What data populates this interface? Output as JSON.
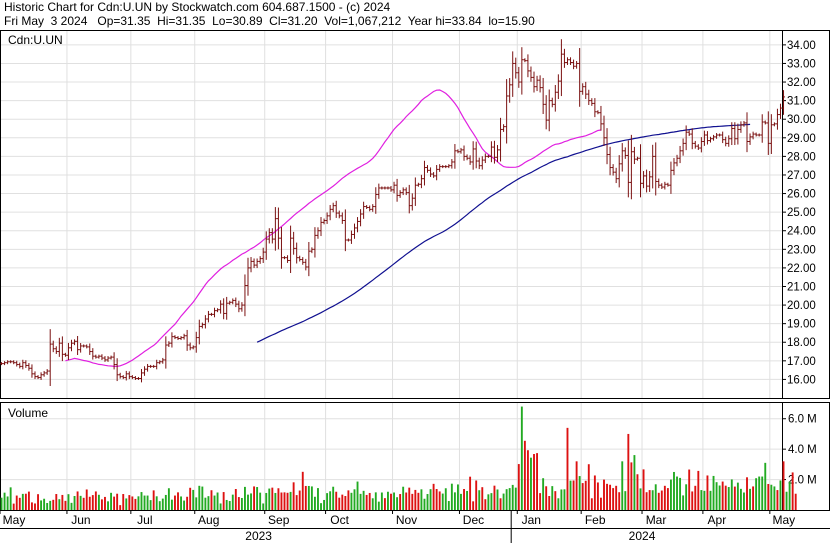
{
  "header": {
    "line1": "Historic Chart for Cdn:U.UN by Stockwatch.com 604.687.1500 - (c) 2024",
    "line2": "Fri May  3 2024   Op=31.35  Hi=31.35  Lo=30.89  Cl=31.20  Vol=1,067,212  Year hi=33.84  lo=15.90"
  },
  "colors": {
    "price_bar": "#7a1010",
    "ma_short": "#e020e0",
    "ma_long": "#101090",
    "vol_up": "#22aa22",
    "vol_down": "#dd1111",
    "grid": "#e0e0e0"
  },
  "chart_data": [
    {
      "type": "ohlc",
      "symbol_label": "Cdn:U.UN",
      "ylim": [
        15.0,
        34.8
      ],
      "y_ticks": [
        "34.00",
        "33.00",
        "32.00",
        "31.00",
        "30.00",
        "29.00",
        "28.00",
        "27.00",
        "26.00",
        "25.00",
        "24.00",
        "23.00",
        "22.00",
        "21.00",
        "20.00",
        "19.00",
        "18.00",
        "17.00",
        "16.00"
      ],
      "month_labels": [
        "May",
        "Jun",
        "Jul",
        "Aug",
        "Sep",
        "Oct",
        "Nov",
        "Dec",
        "Jan",
        "Feb",
        "Mar",
        "Apr",
        "May"
      ],
      "month_start_index": [
        0,
        22,
        43,
        64,
        87,
        107,
        129,
        151,
        170,
        191,
        211,
        231,
        253
      ],
      "year_labels": [
        "2023",
        "2024"
      ],
      "year_label_index": [
        85,
        211
      ],
      "year_boundary_index": 168,
      "total_periods": 257,
      "close": [
        16.85,
        16.9,
        16.95,
        16.95,
        16.9,
        16.8,
        16.7,
        16.9,
        16.75,
        16.6,
        16.3,
        16.15,
        16.1,
        16.25,
        16.35,
        16.45,
        17.9,
        17.65,
        17.5,
        17.95,
        17.35,
        17.3,
        17.7,
        17.95,
        18.05,
        17.6,
        17.8,
        17.8,
        17.75,
        17.5,
        17.25,
        17.2,
        17.25,
        17.15,
        17.05,
        17.15,
        17.2,
        16.8,
        16.25,
        16.15,
        16.1,
        16.3,
        16.15,
        16.1,
        16.05,
        16.05,
        16.35,
        16.55,
        16.7,
        16.7,
        16.7,
        16.9,
        16.95,
        17.05,
        17.85,
        17.95,
        18.3,
        18.25,
        18.2,
        18.25,
        18.35,
        17.85,
        17.7,
        17.75,
        18.25,
        18.85,
        18.95,
        19.25,
        19.5,
        19.5,
        19.7,
        19.75,
        20.05,
        19.55,
        20.1,
        20.15,
        20.25,
        20.05,
        19.8,
        20.0,
        21.05,
        22.0,
        22.35,
        22.15,
        22.35,
        22.5,
        22.85,
        23.55,
        23.9,
        23.55,
        24.65,
        23.6,
        22.55,
        22.55,
        22.4,
        23.6,
        23.05,
        22.55,
        22.45,
        22.3,
        22.05,
        22.9,
        23.0,
        23.75,
        24.0,
        24.45,
        24.55,
        24.8,
        25.15,
        25.35,
        24.95,
        24.8,
        24.55,
        23.5,
        23.5,
        23.8,
        24.15,
        24.5,
        24.9,
        25.3,
        25.25,
        25.15,
        25.3,
        25.95,
        26.3,
        26.3,
        26.3,
        26.3,
        26.2,
        26.45,
        25.9,
        26.05,
        26.2,
        26.05,
        25.35,
        25.75,
        26.45,
        26.5,
        26.8,
        27.4,
        27.25,
        27.05,
        26.95,
        27.3,
        27.45,
        27.45,
        27.45,
        27.5,
        27.7,
        28.3,
        28.25,
        28.35,
        28.0,
        27.9,
        27.7,
        28.4,
        27.75,
        27.5,
        27.8,
        28.0,
        28.0,
        28.5,
        27.95,
        28.35,
        29.45,
        29.6,
        31.25,
        31.85,
        33.0,
        32.5,
        32.0,
        33.2,
        33.15,
        32.6,
        32.25,
        31.75,
        32.1,
        31.7,
        30.8,
        29.95,
        31.0,
        30.8,
        31.45,
        32.05,
        33.5,
        33.05,
        33.2,
        33.05,
        32.85,
        33.0,
        31.5,
        31.75,
        31.35,
        31.0,
        30.85,
        30.4,
        30.35,
        29.75,
        29.0,
        28.1,
        27.4,
        27.15,
        26.8,
        27.6,
        28.3,
        28.05,
        26.6,
        28.25,
        27.85,
        27.9,
        26.55,
        26.95,
        26.4,
        26.9,
        28.0,
        26.65,
        26.45,
        26.35,
        26.5,
        26.45,
        27.25,
        27.65,
        27.9,
        28.3,
        28.7,
        29.3,
        29.2,
        28.7,
        28.55,
        28.45,
        28.8,
        29.15,
        28.85,
        28.95,
        29.05,
        29.15,
        29.15,
        28.9,
        28.7,
        28.95,
        29.5,
        28.95,
        29.45,
        29.7,
        29.8,
        28.8,
        29.05,
        29.2,
        29.15,
        29.15,
        29.85,
        29.8,
        28.7,
        29.7,
        29.75,
        30.25,
        30.6,
        31.2
      ],
      "ma_short_start_index": 21,
      "ma_short": [
        17.0,
        17.05,
        17.08,
        17.13,
        17.1,
        17.06,
        17.02,
        16.99,
        16.95,
        16.89,
        16.85,
        16.81,
        16.79,
        16.76,
        16.73,
        16.72,
        16.7,
        16.7,
        16.73,
        16.79,
        16.86,
        16.95,
        17.04,
        17.15,
        17.26,
        17.38,
        17.5,
        17.61,
        17.72,
        17.83,
        17.97,
        18.15,
        18.32,
        18.48,
        18.65,
        18.81,
        18.97,
        19.18,
        19.4,
        19.59,
        19.78,
        19.97,
        20.16,
        20.39,
        20.63,
        20.86,
        21.1,
        21.3,
        21.46,
        21.63,
        21.79,
        21.94,
        22.07,
        22.17,
        22.28,
        22.41,
        22.51,
        22.63,
        22.74,
        22.82,
        22.92,
        23.03,
        23.12,
        23.23,
        23.35,
        23.49,
        23.62,
        23.73,
        23.83,
        23.96,
        24.1,
        24.23,
        24.37,
        24.51,
        24.66,
        24.81,
        24.95,
        25.07,
        25.2,
        25.33,
        25.47,
        25.59,
        25.71,
        25.83,
        25.94,
        26.05,
        26.16,
        26.28,
        26.4,
        26.53,
        26.68,
        26.82,
        26.94,
        27.06,
        27.16,
        27.26,
        27.36,
        27.45,
        27.54,
        27.63,
        27.75,
        27.89,
        28.08,
        28.3,
        28.54,
        28.78,
        29.0,
        29.23,
        29.45,
        29.63,
        29.78,
        29.95,
        30.14,
        30.3,
        30.45,
        30.62,
        30.8,
        31.0,
        31.14,
        31.25,
        31.37,
        31.49,
        31.56,
        31.57,
        31.49,
        31.39,
        31.24,
        31.05,
        30.85,
        30.62,
        30.32,
        30.03,
        29.76,
        29.49,
        29.24,
        28.99,
        28.69,
        28.41,
        28.23,
        28.1,
        27.99,
        27.86,
        27.71,
        27.57,
        27.45,
        27.42,
        27.41,
        27.41,
        27.42,
        27.46,
        27.55,
        27.67,
        27.76,
        27.84,
        27.93,
        28.04,
        28.15,
        28.27,
        28.37,
        28.47,
        28.58,
        28.65,
        28.67,
        28.72,
        28.79,
        28.84,
        28.91,
        28.95,
        29.0,
        29.04,
        29.07,
        29.11,
        29.17,
        29.23,
        29.32,
        29.39,
        29.42
      ],
      "ma_long_start_index": 84,
      "ma_long": [
        18.0,
        18.08,
        18.16,
        18.24,
        18.32,
        18.39,
        18.46,
        18.54,
        18.62,
        18.69,
        18.76,
        18.83,
        18.9,
        18.97,
        19.04,
        19.11,
        19.19,
        19.27,
        19.35,
        19.43,
        19.51,
        19.59,
        19.68,
        19.77,
        19.86,
        19.94,
        20.03,
        20.13,
        20.22,
        20.32,
        20.42,
        20.52,
        20.63,
        20.74,
        20.86,
        20.98,
        21.1,
        21.22,
        21.34,
        21.47,
        21.59,
        21.72,
        21.84,
        21.97,
        22.09,
        22.22,
        22.35,
        22.48,
        22.6,
        22.73,
        22.85,
        22.97,
        23.08,
        23.2,
        23.31,
        23.42,
        23.51,
        23.6,
        23.69,
        23.77,
        23.85,
        23.93,
        24.03,
        24.13,
        24.24,
        24.35,
        24.47,
        24.6,
        24.73,
        24.86,
        25.0,
        25.13,
        25.26,
        25.39,
        25.51,
        25.64,
        25.76,
        25.87,
        25.97,
        26.07,
        26.17,
        26.29,
        26.4,
        26.5,
        26.6,
        26.7,
        26.8,
        26.89,
        26.97,
        27.05,
        27.13,
        27.22,
        27.31,
        27.4,
        27.48,
        27.56,
        27.65,
        27.72,
        27.79,
        27.84,
        27.89,
        27.94,
        27.98,
        28.04,
        28.1,
        28.15,
        28.2,
        28.25,
        28.31,
        28.36,
        28.41,
        28.46,
        28.51,
        28.56,
        28.61,
        28.65,
        28.69,
        28.73,
        28.77,
        28.8,
        28.84,
        28.87,
        28.9,
        28.93,
        28.96,
        28.99,
        29.02,
        29.05,
        29.08,
        29.11,
        29.14,
        29.16,
        29.18,
        29.21,
        29.23,
        29.26,
        29.29,
        29.31,
        29.34,
        29.37,
        29.39,
        29.42,
        29.44,
        29.47,
        29.49,
        29.51,
        29.53,
        29.55,
        29.57,
        29.58,
        29.6,
        29.61,
        29.62,
        29.63,
        29.64,
        29.65,
        29.66,
        29.67,
        29.68,
        29.69,
        29.7,
        29.71,
        29.72
      ]
    },
    {
      "type": "bar",
      "label": "Volume",
      "ylim": [
        0,
        7.1
      ],
      "y_ticks": [
        "6.0 M",
        "4.0 M",
        "2.0 M"
      ],
      "volume_millions": [
        0.81,
        1.14,
        0.89,
        1.49,
        0.42,
        0.95,
        0.8,
        1.06,
        1.07,
        1.21,
        0.5,
        0.43,
        1.04,
        0.63,
        0.74,
        0.46,
        0.6,
        0.67,
        1.05,
        0.71,
        0.99,
        0.6,
        1.04,
        0.47,
        0.92,
        1.22,
        0.93,
        0.8,
        1.35,
        0.87,
        0.98,
        1.22,
        1.0,
        0.7,
        0.86,
        0.57,
        1.13,
        0.88,
        1.07,
        0.32,
        1.05,
        0.76,
        0.98,
        0.89,
        0.73,
        0.9,
        1.18,
        0.95,
        0.95,
        0.65,
        1.29,
        0.9,
        0.58,
        0.75,
        0.99,
        1.43,
        0.68,
        0.95,
        1.16,
        0.89,
        0.62,
        0.87,
        1.46,
        1.32,
        0.83,
        1.59,
        1.54,
        0.81,
        0.91,
        1.3,
        0.95,
        1.15,
        0.43,
        1.18,
        0.66,
        0.59,
        1.01,
        1.38,
        0.85,
        0.79,
        1.52,
        1.01,
        1.09,
        1.55,
        1.51,
        1.14,
        0.43,
        1.12,
        1.41,
        1.47,
        1.12,
        1.43,
        1.15,
        1.16,
        1.13,
        1.19,
        1.82,
        0.98,
        1.28,
        2.51,
        1.58,
        1.58,
        1.55,
        0.87,
        1.44,
        0.45,
        0.66,
        1.11,
        1.23,
        1.53,
        1.2,
        0.81,
        1.01,
        0.92,
        1.29,
        1.13,
        1.36,
        1.87,
        1.06,
        1.26,
        0.99,
        1.12,
        0.77,
        1.16,
        0.55,
        1.15,
        0.78,
        1.2,
        1.07,
        1.15,
        0.84,
        1.05,
        1.53,
        1.15,
        1.47,
        1.06,
        1.32,
        1.13,
        1.36,
        0.74,
        1.05,
        1.37,
        1.72,
        1.38,
        1.22,
        1.08,
        1.43,
        0.59,
        1.73,
        1.16,
        1.68,
        1.06,
        1.38,
        1.25,
        2.19,
        0.57,
        1.94,
        1.3,
        1.5,
        0.71,
        1.03,
        1.11,
        1.6,
        1.35,
        0.77,
        1.08,
        1.37,
        1.44,
        1.65,
        1.47,
        3.02,
        6.8,
        4.55,
        3.93,
        3.44,
        3.68,
        3.74,
        1.11,
        2.09,
        1.56,
        0.92,
        1.57,
        1.24,
        0.77,
        1.35,
        1.36,
        5.4,
        1.93,
        1.94,
        3.2,
        2.23,
        1.77,
        1.92,
        3.01,
        0.77,
        2.27,
        1.81,
        0.81,
        2.0,
        1.72,
        1.66,
        1.44,
        1.59,
        1.17,
        3.2,
        1.24,
        5.0,
        3.13,
        3.61,
        2.35,
        1.42,
        2.67,
        1.17,
        1.31,
        1.3,
        1.69,
        1.13,
        1.28,
        1.59,
        1.44,
        2.0,
        2.5,
        2.2,
        2.11,
        0.96,
        1.69,
        2.66,
        1.22,
        1.59,
        2.57,
        1.31,
        1.26,
        2.27,
        1.26,
        2.24,
        1.83,
        1.61,
        1.87,
        1.6,
        1.51,
        2.01,
        1.54,
        1.8,
        1.39,
        1.15,
        2.15,
        1.39,
        1.55,
        2.09,
        2.2,
        2.2,
        3.1,
        1.71,
        1.66,
        1.55,
        1.31,
        1.94,
        3.2,
        1.2,
        1.86,
        2.47,
        1.07
      ],
      "volume_color": [
        "G",
        "G",
        "G",
        "G",
        "R",
        "R",
        "R",
        "G",
        "R",
        "R",
        "R",
        "R",
        "R",
        "G",
        "G",
        "G",
        "G",
        "R",
        "R",
        "G",
        "R",
        "R",
        "G",
        "G",
        "G",
        "R",
        "G",
        "R",
        "R",
        "R",
        "R",
        "R",
        "G",
        "R",
        "R",
        "G",
        "G",
        "R",
        "R",
        "R",
        "R",
        "G",
        "R",
        "R",
        "R",
        "G",
        "G",
        "G",
        "G",
        "G",
        "R",
        "G",
        "G",
        "G",
        "G",
        "G",
        "G",
        "R",
        "R",
        "G",
        "G",
        "R",
        "R",
        "G",
        "G",
        "G",
        "G",
        "G",
        "G",
        "R",
        "G",
        "G",
        "G",
        "R",
        "G",
        "G",
        "G",
        "R",
        "R",
        "G",
        "G",
        "G",
        "G",
        "R",
        "G",
        "G",
        "G",
        "G",
        "G",
        "R",
        "G",
        "R",
        "R",
        "R",
        "R",
        "G",
        "R",
        "R",
        "R",
        "R",
        "R",
        "G",
        "G",
        "G",
        "G",
        "G",
        "G",
        "G",
        "G",
        "G",
        "R",
        "R",
        "R",
        "R",
        "R",
        "G",
        "G",
        "G",
        "G",
        "G",
        "R",
        "R",
        "G",
        "G",
        "G",
        "G",
        "R",
        "G",
        "R",
        "G",
        "G",
        "R",
        "G",
        "R",
        "R",
        "R",
        "R",
        "R",
        "G",
        "G",
        "G",
        "G",
        "R",
        "R",
        "R",
        "G",
        "G",
        "G",
        "G",
        "G",
        "G",
        "G",
        "R",
        "G",
        "R",
        "R",
        "R",
        "G",
        "R",
        "R",
        "G",
        "G",
        "R",
        "G",
        "R",
        "G",
        "G",
        "G",
        "G",
        "G",
        "R",
        "G",
        "R",
        "R",
        "G",
        "R",
        "R",
        "R",
        "G",
        "R",
        "R",
        "G",
        "R",
        "G",
        "G",
        "G",
        "R",
        "G",
        "R",
        "R",
        "G",
        "R",
        "R",
        "R",
        "R",
        "R",
        "R",
        "R",
        "R",
        "R",
        "R",
        "R",
        "R",
        "R",
        "G",
        "G",
        "R",
        "R",
        "G",
        "R",
        "G",
        "R",
        "R",
        "R",
        "G",
        "G",
        "R",
        "R",
        "R",
        "R",
        "G",
        "G",
        "G",
        "G",
        "G",
        "G",
        "R",
        "R",
        "R",
        "R",
        "G",
        "G",
        "R",
        "G",
        "G",
        "G",
        "G",
        "R",
        "R",
        "G",
        "G",
        "R",
        "G",
        "G",
        "G",
        "R",
        "G",
        "R",
        "G",
        "G",
        "G",
        "G",
        "R",
        "G",
        "G",
        "R",
        "G",
        "R",
        "G",
        "G",
        "R"
      ]
    }
  ]
}
